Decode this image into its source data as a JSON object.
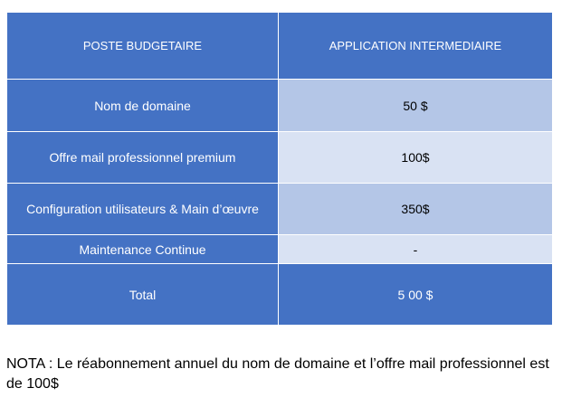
{
  "table": {
    "headers": [
      "POSTE BUDGETAIRE",
      "APPLICATION INTERMEDIAIRE"
    ],
    "rows": [
      {
        "label": "Nom de domaine",
        "value": "50 $"
      },
      {
        "label": "Offre mail professionnel premium",
        "value": "100$"
      },
      {
        "label": "Configuration utilisateurs & Main d’œuvre",
        "value": "350$"
      },
      {
        "label": "Maintenance Continue",
        "value": "-"
      }
    ],
    "total": {
      "label": "Total",
      "value": "5 00 $"
    },
    "colors": {
      "header_bg": "#4472c4",
      "cell_dark": "#b4c6e7",
      "cell_light": "#d9e2f3"
    }
  },
  "note": "NOTA : Le réabonnement annuel du nom de domaine et l’offre mail professionnel est de 100$"
}
